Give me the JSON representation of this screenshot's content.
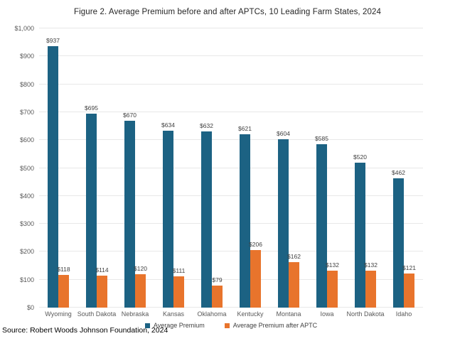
{
  "chart_data": {
    "type": "bar",
    "title": "Figure 2. Average Premium before and after APTCs, 10 Leading Farm States, 2024",
    "categories": [
      "Wyoming",
      "South Dakota",
      "Nebraska",
      "Kansas",
      "Oklahoma",
      "Kentucky",
      "Montana",
      "Iowa",
      "North Dakota",
      "Idaho"
    ],
    "series": [
      {
        "name": "Average Premium",
        "color": "#1c6283",
        "values": [
          937,
          695,
          670,
          634,
          632,
          621,
          604,
          585,
          520,
          462
        ]
      },
      {
        "name": "Average Premium after APTC",
        "color": "#e8742c",
        "values": [
          118,
          114,
          120,
          111,
          79,
          206,
          162,
          132,
          132,
          121
        ]
      }
    ],
    "value_prefix": "$",
    "xlabel": "",
    "ylabel": "",
    "ylim": [
      0,
      1000
    ],
    "ytick_labels": [
      "$0",
      "$100",
      "$200",
      "$300",
      "$400",
      "$500",
      "$600",
      "$700",
      "$800",
      "$900",
      "$1,000"
    ],
    "grid": true,
    "legend_position": "bottom-center",
    "data_labels": true
  },
  "source_note": "Source: Robert Woods Johnson Foundation, 2024",
  "colors": {
    "series1": "#1c6283",
    "series2": "#e8742c",
    "gridline": "#e8e8e8",
    "axis_text": "#595959",
    "label_text": "#404040",
    "background": "#ffffff"
  }
}
